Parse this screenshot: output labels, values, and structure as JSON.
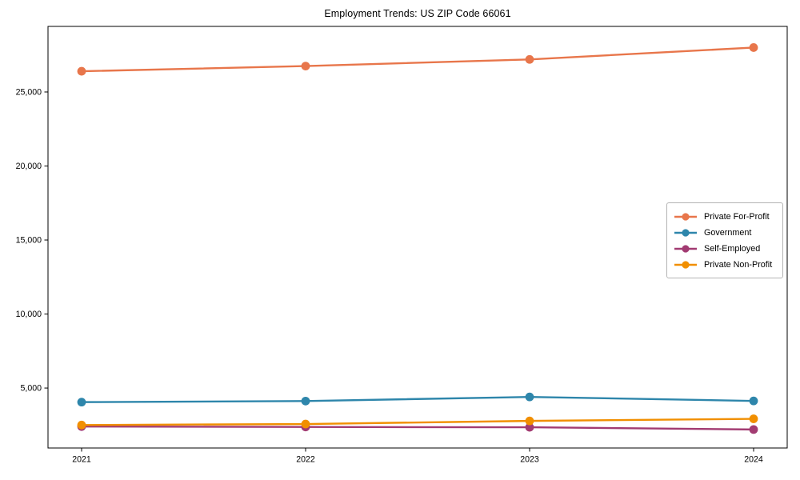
{
  "chart_data": {
    "type": "line",
    "title": "Employment Trends: US ZIP Code 66061",
    "categories": [
      "2021",
      "2022",
      "2023",
      "2024"
    ],
    "series": [
      {
        "name": "Private For-Profit",
        "color": "#E8764B",
        "values": [
          26400,
          26750,
          27200,
          28000
        ]
      },
      {
        "name": "Government",
        "color": "#2E86AB",
        "values": [
          4050,
          4120,
          4400,
          4130
        ]
      },
      {
        "name": "Self-Employed",
        "color": "#A23B72",
        "values": [
          2400,
          2370,
          2350,
          2200
        ]
      },
      {
        "name": "Private Non-Profit",
        "color": "#F18F01",
        "values": [
          2500,
          2570,
          2780,
          2920
        ]
      }
    ],
    "xlabel": "",
    "ylabel": "",
    "ylim": [
      950,
      29430
    ],
    "yticks": [
      {
        "value": 5000,
        "label": "5,000"
      },
      {
        "value": 10000,
        "label": "10,000"
      },
      {
        "value": 15000,
        "label": "15,000"
      },
      {
        "value": 20000,
        "label": "20,000"
      },
      {
        "value": 25000,
        "label": "25,000"
      }
    ],
    "grid": false,
    "legend_position": "center-right",
    "axis_color": "#000000",
    "background": "#ffffff"
  }
}
